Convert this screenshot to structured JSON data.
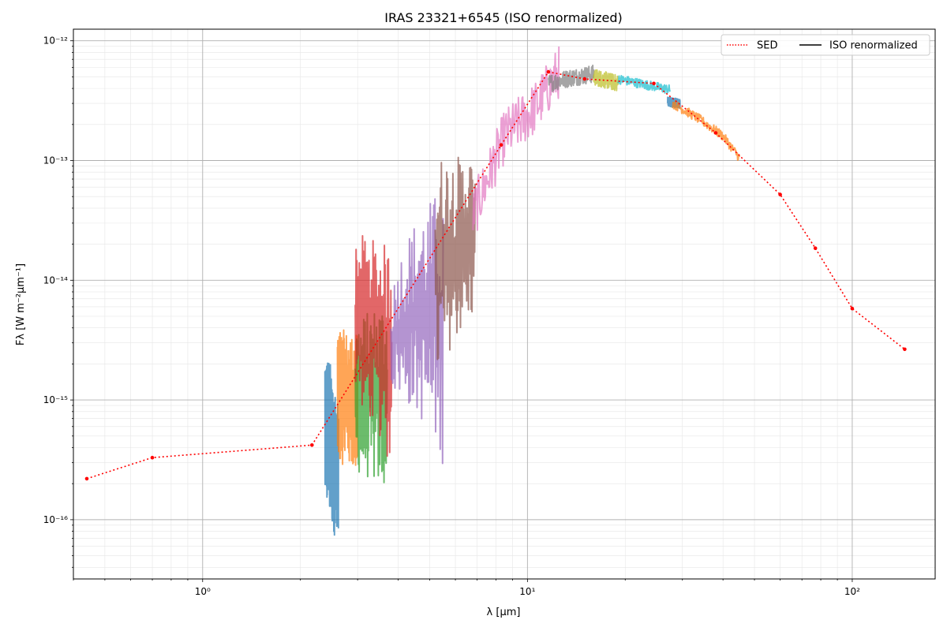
{
  "chart_data": {
    "type": "line",
    "title": "IRAS 23321+6545 (ISO renormalized)",
    "xlabel": "λ [μm]",
    "ylabel": "Fλ [W m⁻²μm⁻¹]",
    "xscale": "log",
    "yscale": "log",
    "xlim": [
      0.4,
      180
    ],
    "ylim": [
      3.2e-17,
      1.25e-12
    ],
    "grid": true,
    "legend": "top-right",
    "x_ticks": [
      {
        "value": 1,
        "label": "10⁰"
      },
      {
        "value": 10,
        "label": "10¹"
      },
      {
        "value": 100,
        "label": "10²"
      }
    ],
    "y_ticks": [
      {
        "value": 1e-16,
        "label": "10⁻¹⁶"
      },
      {
        "value": 1e-15,
        "label": "10⁻¹⁵"
      },
      {
        "value": 1e-14,
        "label": "10⁻¹⁴"
      },
      {
        "value": 1e-13,
        "label": "10⁻¹³"
      },
      {
        "value": 1e-12,
        "label": "10⁻¹²"
      }
    ],
    "legend_entries": [
      {
        "name": "SED",
        "color": "#ff0000",
        "style": "dotted"
      },
      {
        "name": "ISO renormalized",
        "color": "#000000",
        "style": "solid"
      }
    ],
    "sed": {
      "name": "SED",
      "color": "#ff0000",
      "x": [
        0.44,
        0.7,
        2.17,
        8.3,
        11.6,
        15.0,
        24.5,
        38.0,
        60.0,
        77.0,
        100.0,
        145.0
      ],
      "y": [
        2.2e-16,
        3.3e-16,
        4.2e-16,
        1.35e-13,
        5.5e-13,
        4.8e-13,
        4.4e-13,
        1.7e-13,
        5.2e-14,
        1.85e-14,
        5.8e-15,
        2.65e-15
      ]
    },
    "spectra": [
      {
        "color": "#1f77b4",
        "x": [
          2.38,
          2.62
        ],
        "y_low": [
          1.3e-16,
          5e-17
        ],
        "y_high": [
          2.8e-15,
          9e-16
        ]
      },
      {
        "color": "#ff7f0e",
        "x": [
          2.6,
          3.0
        ],
        "y_low": [
          3e-16,
          2.5e-16
        ],
        "y_high": [
          4e-15,
          3.5e-15
        ]
      },
      {
        "color": "#2ca02c",
        "x": [
          2.95,
          3.7
        ],
        "y_low": [
          2.5e-16,
          1.7e-16
        ],
        "y_high": [
          4.5e-15,
          7e-15
        ]
      },
      {
        "color": "#d62728",
        "x": [
          2.95,
          3.82
        ],
        "y_low": [
          1e-15,
          2.3e-16
        ],
        "y_high": [
          2.5e-14,
          1.9e-14
        ]
      },
      {
        "color": "#9467bd",
        "x": [
          3.8,
          5.5
        ],
        "y_low": [
          1.2e-15,
          2.8e-16
        ],
        "y_high": [
          7e-15,
          6e-14
        ]
      },
      {
        "color": "#8c564b",
        "x": [
          5.2,
          6.9
        ],
        "y_low": [
          1.2e-15,
          5e-15
        ],
        "y_high": [
          1.1e-13,
          1.1e-13
        ]
      },
      {
        "color": "#e377c2",
        "x": [
          6.8,
          8.5,
          10.5,
          12.5
        ],
        "y": [
          3.5e-14,
          1.6e-13,
          2.7e-13,
          5.5e-13
        ],
        "noise": 0.45
      },
      {
        "color": "#7f7f7f",
        "x": [
          11.6,
          13.5,
          16.0
        ],
        "y": [
          4.4e-13,
          4.9e-13,
          5.3e-13
        ],
        "noise": 0.15
      },
      {
        "color": "#bcbd22",
        "x": [
          16.0,
          19.0
        ],
        "y": [
          5e-13,
          4.4e-13
        ],
        "noise": 0.14
      },
      {
        "color": "#17becf",
        "x": [
          19.0,
          27.5
        ],
        "y": [
          4.8e-13,
          3.9e-13
        ],
        "noise": 0.08
      },
      {
        "color": "#1f77b4",
        "x": [
          27.0,
          29.5
        ],
        "y": [
          3.1e-13,
          3e-13
        ],
        "noise": 0.08
      },
      {
        "color": "#ff7f0e",
        "x": [
          28.0,
          34.0,
          40.0,
          45.0
        ],
        "y": [
          3e-13,
          2.2e-13,
          1.6e-13,
          1.05e-13
        ],
        "noise": 0.08
      }
    ]
  }
}
